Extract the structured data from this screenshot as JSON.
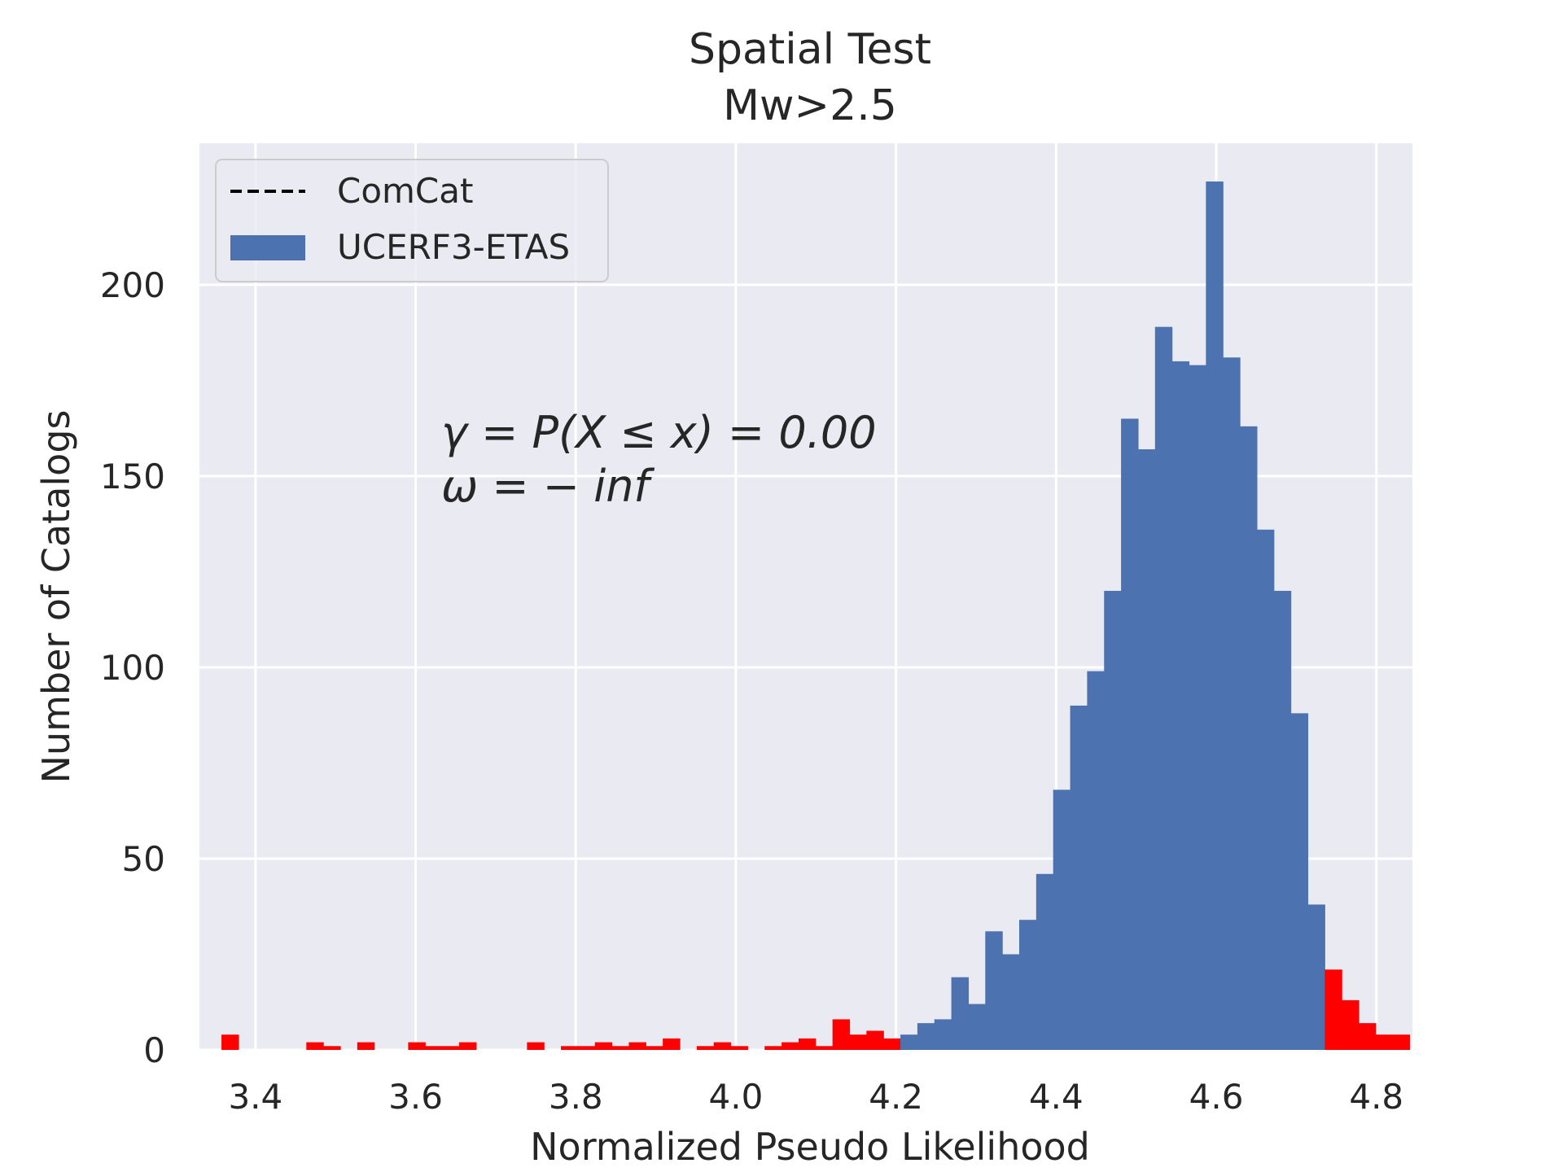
{
  "colors": {
    "plot_background": "#EAEAF2",
    "grid": "#FFFFFF",
    "in_range_bar": "#4C72B0",
    "out_of_range_bar": "#FF0000",
    "observation_line": "#000000",
    "text": "#262626"
  },
  "chart_data": {
    "type": "bar",
    "title": "Spatial Test",
    "subtitle": "Mw>2.5",
    "xlabel": "Normalized Pseudo Likelihood",
    "ylabel": "Number of Catalogs",
    "xlim": [
      3.33,
      4.845
    ],
    "ylim": [
      0,
      237
    ],
    "xticks": [
      3.4,
      3.6,
      3.8,
      4.0,
      4.2,
      4.4,
      4.6,
      4.8
    ],
    "xtick_labels": [
      "3.4",
      "3.6",
      "3.8",
      "4.0",
      "4.2",
      "4.4",
      "4.6",
      "4.8"
    ],
    "yticks": [
      0,
      50,
      100,
      150,
      200
    ],
    "ytick_labels": [
      "0",
      "50",
      "100",
      "150",
      "200"
    ],
    "grid": true,
    "legend_placement": "top-left",
    "legend": [
      {
        "label": "ComCat",
        "style": "dashed-line"
      },
      {
        "label": "UCERF3-ETAS",
        "style": "filled-patch"
      }
    ],
    "annotations": [
      "γ = P(X ≤ x) = 0.00",
      "ω = − inf"
    ],
    "bin_width": 0.0212,
    "bin_left_edges": [
      3.3575,
      3.3787,
      3.3999,
      3.4211,
      3.4423,
      3.4635,
      3.4847,
      3.5059,
      3.5271,
      3.5483,
      3.5695,
      3.5907,
      3.6119,
      3.6331,
      3.6543,
      3.6755,
      3.6967,
      3.7179,
      3.7391,
      3.7603,
      3.7815,
      3.8027,
      3.8239,
      3.8451,
      3.8663,
      3.8875,
      3.9087,
      3.9299,
      3.9511,
      3.9723,
      3.9935,
      4.0147,
      4.0359,
      4.0571,
      4.0783,
      4.0995,
      4.1207,
      4.1419,
      4.1631,
      4.1843,
      4.2055,
      4.2267,
      4.2479,
      4.2691,
      4.2903,
      4.3115,
      4.3327,
      4.3539,
      4.3751,
      4.3963,
      4.4175,
      4.4387,
      4.4599,
      4.4811,
      4.5023,
      4.5235,
      4.5447,
      4.5659,
      4.5871,
      4.6083,
      4.6295,
      4.6507,
      4.6719,
      4.6931,
      4.7143,
      4.7355,
      4.7567,
      4.7779,
      4.7991,
      4.8203
    ],
    "series": [
      {
        "counts": [
          4,
          0,
          0,
          0,
          0,
          2,
          1,
          0,
          2,
          0,
          0,
          2,
          1,
          1,
          2,
          0,
          0,
          0,
          2,
          0,
          1,
          1,
          2,
          1,
          2,
          1,
          3,
          0,
          1,
          2,
          1,
          0,
          1,
          2,
          3,
          1,
          8,
          4,
          5,
          3,
          4,
          7,
          8,
          19,
          12,
          31,
          25,
          34,
          46,
          68,
          90,
          99,
          120,
          165,
          157,
          189,
          180,
          179,
          227,
          181,
          163,
          136,
          120,
          88,
          38,
          21,
          13,
          7,
          4,
          4
        ],
        "bar_colors": [
          "#FF0000",
          "#FF0000",
          "#FF0000",
          "#FF0000",
          "#FF0000",
          "#FF0000",
          "#FF0000",
          "#FF0000",
          "#FF0000",
          "#FF0000",
          "#FF0000",
          "#FF0000",
          "#FF0000",
          "#FF0000",
          "#FF0000",
          "#FF0000",
          "#FF0000",
          "#FF0000",
          "#FF0000",
          "#FF0000",
          "#FF0000",
          "#FF0000",
          "#FF0000",
          "#FF0000",
          "#FF0000",
          "#FF0000",
          "#FF0000",
          "#FF0000",
          "#FF0000",
          "#FF0000",
          "#FF0000",
          "#FF0000",
          "#FF0000",
          "#FF0000",
          "#FF0000",
          "#FF0000",
          "#FF0000",
          "#FF0000",
          "#FF0000",
          "#FF0000",
          "#4C72B0",
          "#4C72B0",
          "#4C72B0",
          "#4C72B0",
          "#4C72B0",
          "#4C72B0",
          "#4C72B0",
          "#4C72B0",
          "#4C72B0",
          "#4C72B0",
          "#4C72B0",
          "#4C72B0",
          "#4C72B0",
          "#4C72B0",
          "#4C72B0",
          "#4C72B0",
          "#4C72B0",
          "#4C72B0",
          "#4C72B0",
          "#4C72B0",
          "#4C72B0",
          "#4C72B0",
          "#4C72B0",
          "#4C72B0",
          "#4C72B0",
          "#FF0000",
          "#FF0000",
          "#FF0000",
          "#FF0000",
          "#FF0000"
        ]
      }
    ]
  }
}
